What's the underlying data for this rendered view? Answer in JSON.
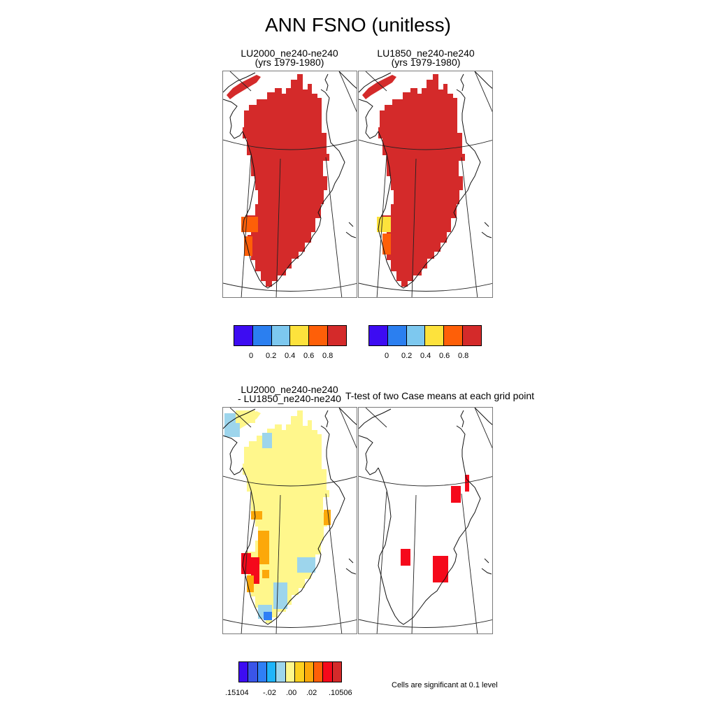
{
  "main_title": "ANN FSNO (unitless)",
  "panels": {
    "top_left": {
      "line1": "LU2000_ne240-ne240",
      "line2": "(yrs 1979-1980)"
    },
    "top_right": {
      "line1": "LU1850_ne240-ne240",
      "line2": "(yrs 1979-1980)"
    },
    "bottom_left": {
      "line1": "LU2000_ne240-ne240",
      "line2": "- LU1850_ne240-ne240"
    },
    "bottom_right": {
      "line1": "T-test of two Case means at each grid point"
    }
  },
  "colorbar_top": {
    "colors": [
      "#3d0cf2",
      "#2b7ff0",
      "#7dc8ef",
      "#fde23c",
      "#fe5f08",
      "#d42a2a"
    ],
    "tick_labels": [
      "0",
      "0.2",
      "0.4",
      "0.6",
      "0.8"
    ]
  },
  "colorbar_diff": {
    "colors": [
      "#3d0cf2",
      "#3a55e8",
      "#2f7ff5",
      "#1fb4fa",
      "#9dd5ec",
      "#fff78c",
      "#fdd01f",
      "#fca80a",
      "#fe5f08",
      "#f5091b",
      "#d42a2a"
    ],
    "tick_labels": [
      ".15104",
      "-.02",
      ".00",
      ".02",
      ".10506"
    ]
  },
  "significance_note": "Cells are significant at 0.1 level",
  "colors": {
    "snow_high": "#d42a2a",
    "snow_orange": "#fe5f08",
    "snow_yellow": "#fde23c",
    "diff_light_yellow": "#fff78c",
    "diff_light_blue": "#9dd5ec",
    "diff_blue": "#2f7ff5",
    "diff_orange": "#fca80a",
    "diff_red": "#f5091b",
    "ttest_red": "#f5091b"
  }
}
